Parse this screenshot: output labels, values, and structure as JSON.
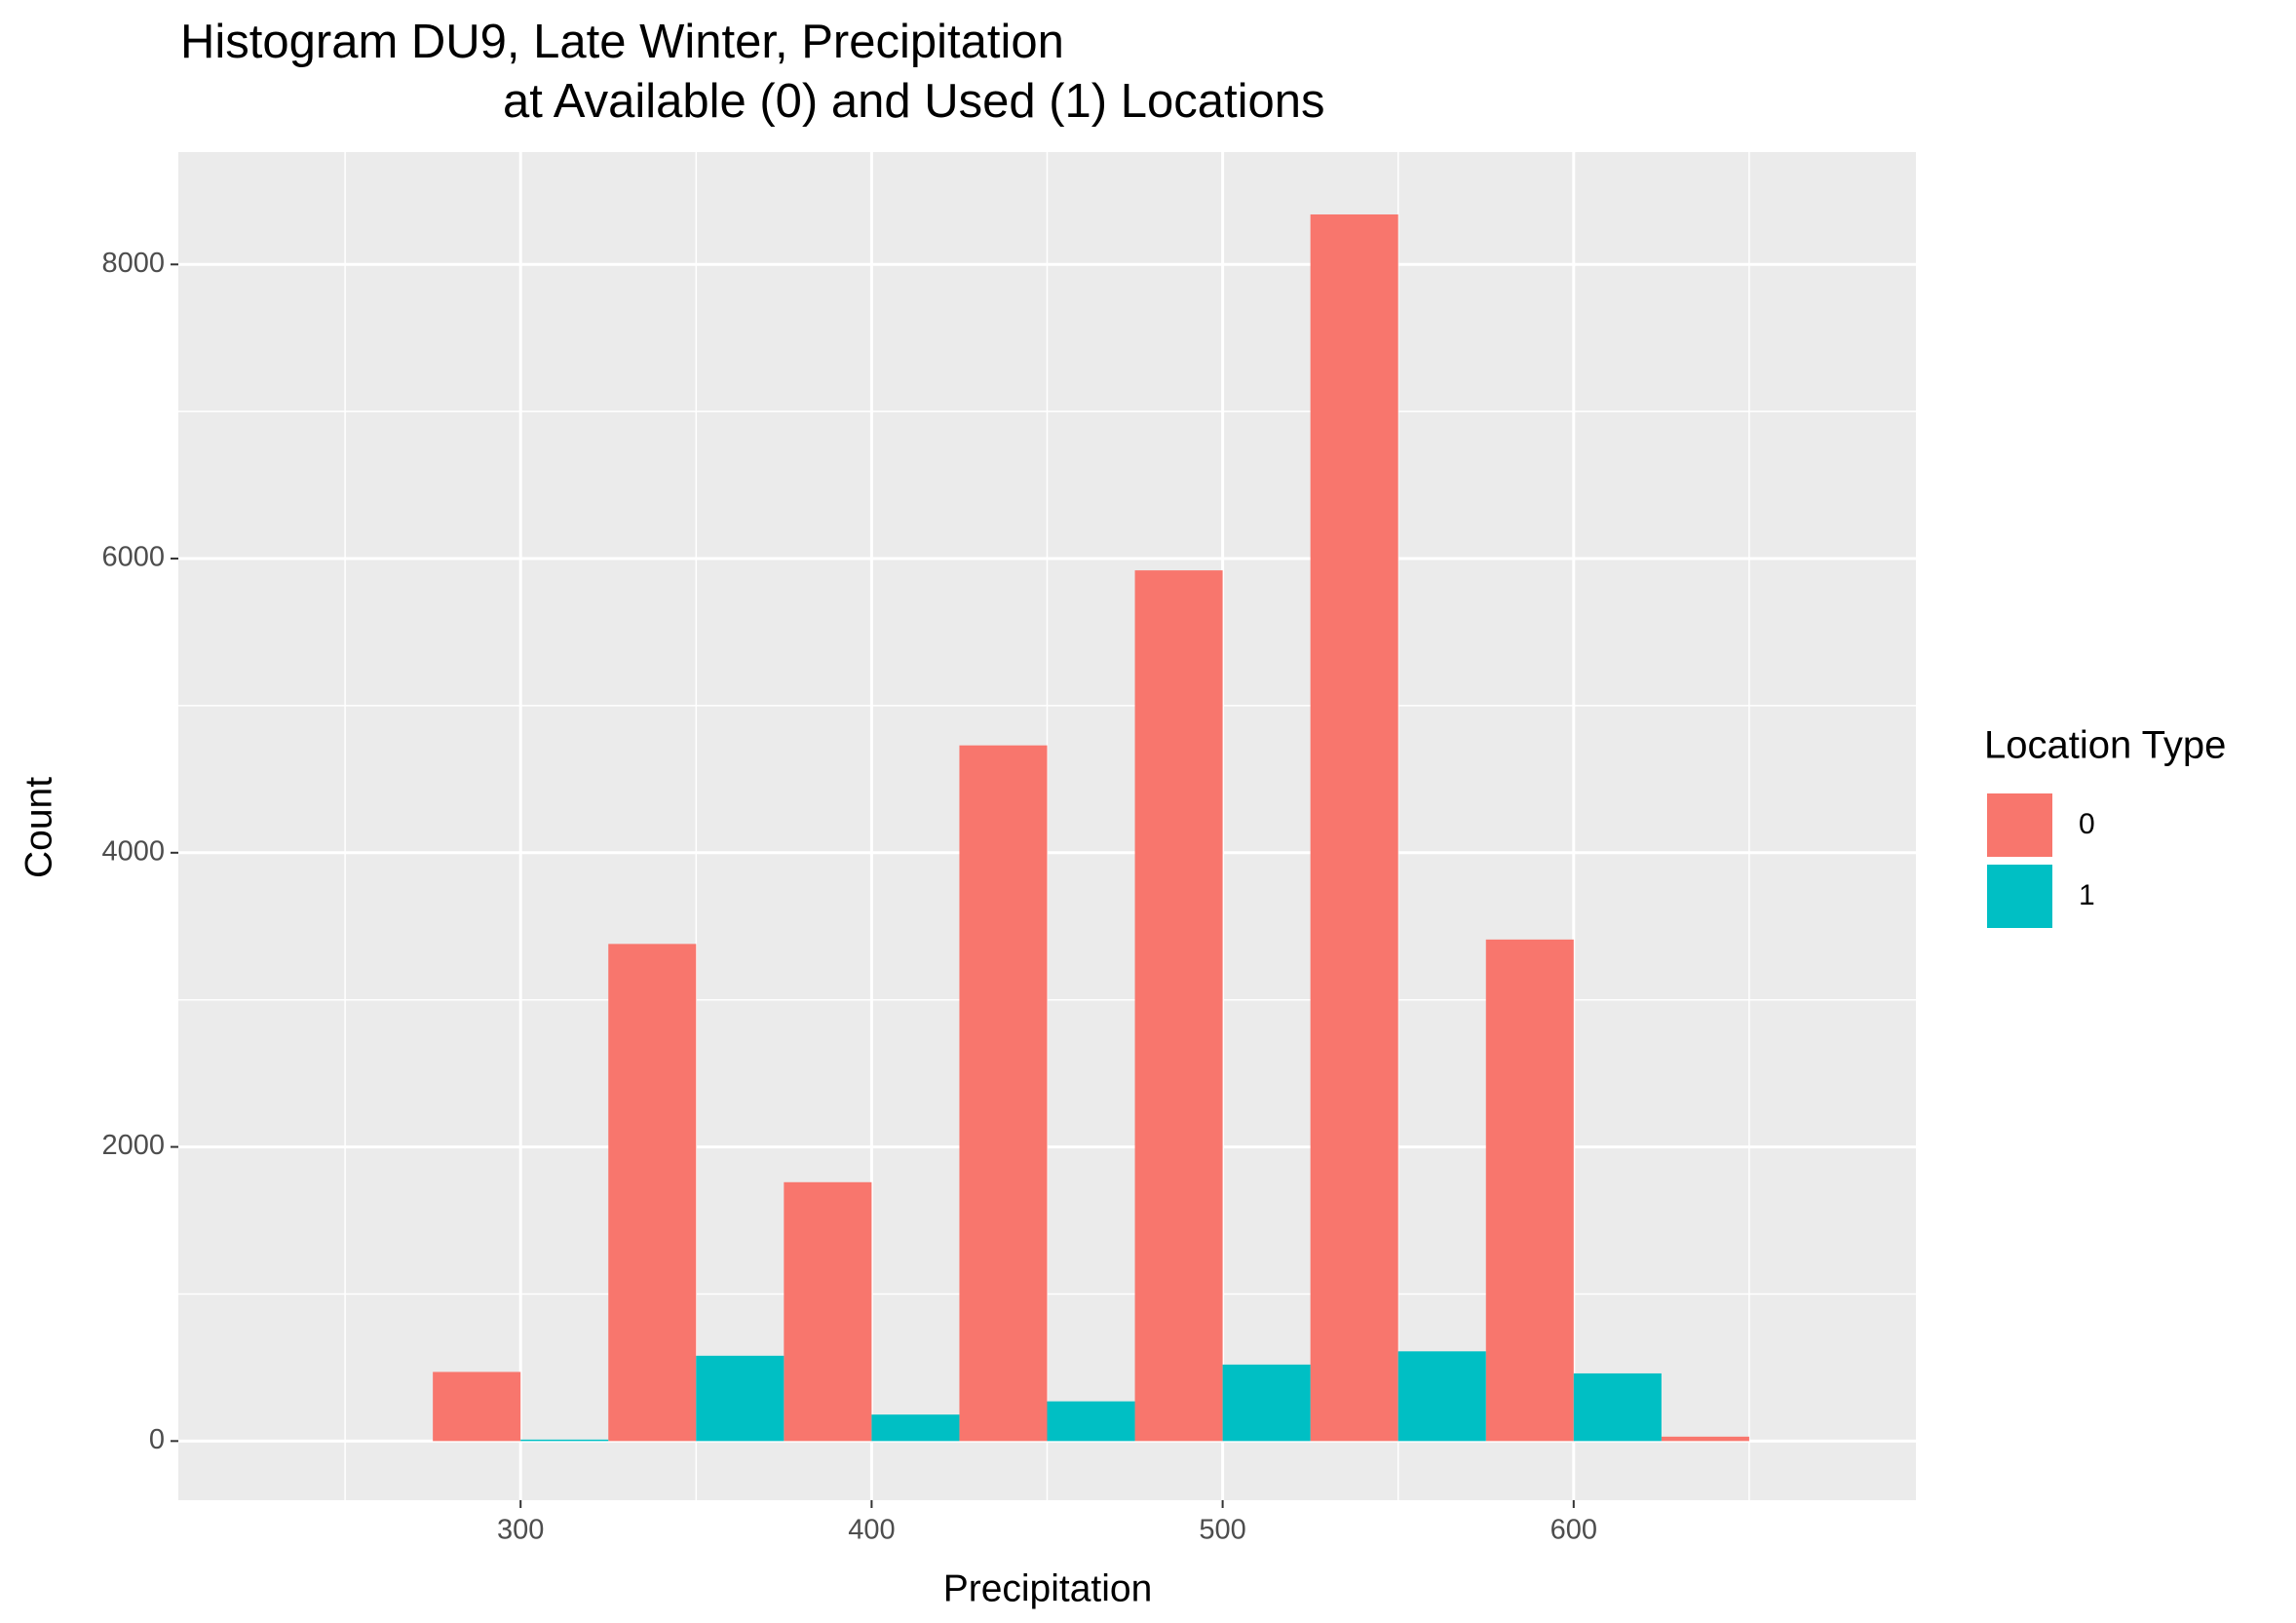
{
  "chart_data": {
    "type": "histogram",
    "title": [
      "Histogram DU9, Late Winter, Precipitation",
      "at Available (0) and Used (1) Locations"
    ],
    "x_label": "Precipitation",
    "y_label": "Count",
    "legend_title": "Location Type",
    "legend_position": "right",
    "position": "dodge",
    "bins": [
      225,
      275,
      325,
      375,
      425,
      475,
      525,
      575,
      625,
      675
    ],
    "series": [
      {
        "name": "0",
        "color": "#F8766D",
        "values": [
          0,
          470,
          3380,
          1760,
          4730,
          5920,
          8340,
          3410,
          30
        ]
      },
      {
        "name": "1",
        "color": "#00BFC4",
        "values": [
          0,
          10,
          580,
          180,
          270,
          520,
          610,
          460,
          0
        ]
      }
    ],
    "xlim": [
      202.5,
      697.5
    ],
    "xticks": [
      300,
      400,
      500,
      600
    ],
    "ylim": [
      -402,
      8764
    ],
    "yticks": [
      0,
      2000,
      4000,
      6000,
      8000
    ],
    "grid": true
  }
}
